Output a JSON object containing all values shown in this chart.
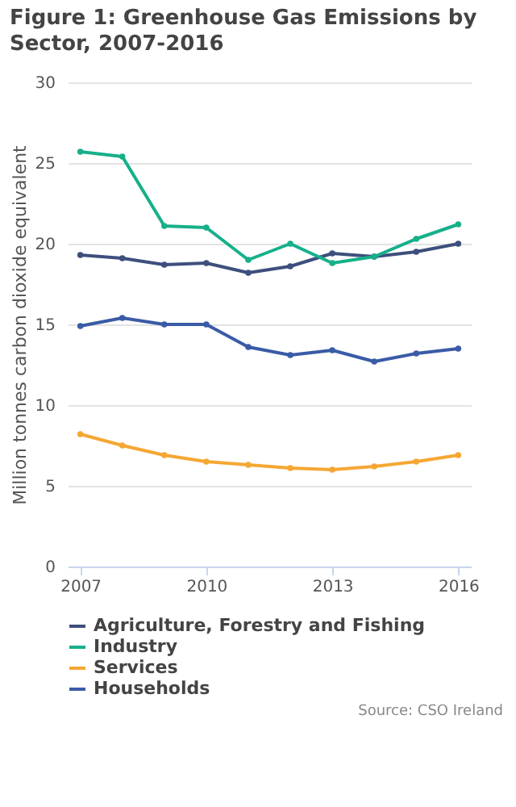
{
  "chart_data": {
    "type": "line",
    "title": "Figure 1: Greenhouse Gas Emissions by Sector, 2007-2016",
    "ylabel": "Million tonnes carbon dioxide equivalent",
    "x": [
      2007,
      2008,
      2009,
      2010,
      2011,
      2012,
      2013,
      2014,
      2015,
      2016
    ],
    "xlim": [
      2006.7,
      2016.3
    ],
    "xticks": [
      2007,
      2010,
      2013,
      2016
    ],
    "ylim": [
      0,
      30
    ],
    "yticks": [
      0,
      5,
      10,
      15,
      20,
      25,
      30
    ],
    "grid": "y",
    "legend": "bottom",
    "marker": "circle",
    "line_style": "solid",
    "annotations": [
      "Source: CSO Ireland"
    ],
    "series": [
      {
        "name": "Agriculture, Forestry and Fishing",
        "color": "#3d4f7c",
        "values": [
          19.3,
          19.1,
          18.7,
          18.8,
          18.2,
          18.6,
          19.4,
          19.2,
          19.5,
          20.0
        ]
      },
      {
        "name": "Industry",
        "color": "#16b08a",
        "values": [
          25.7,
          25.4,
          21.1,
          21.0,
          19.0,
          20.0,
          18.8,
          19.2,
          20.3,
          21.2
        ]
      },
      {
        "name": "Services",
        "color": "#f5a733",
        "values": [
          8.2,
          7.5,
          6.9,
          6.5,
          6.3,
          6.1,
          6.0,
          6.2,
          6.5,
          6.9
        ]
      },
      {
        "name": "Households",
        "color": "#3a5ba6",
        "values": [
          14.9,
          15.4,
          15.0,
          15.0,
          13.6,
          13.1,
          13.4,
          12.7,
          13.2,
          13.5
        ]
      }
    ]
  }
}
